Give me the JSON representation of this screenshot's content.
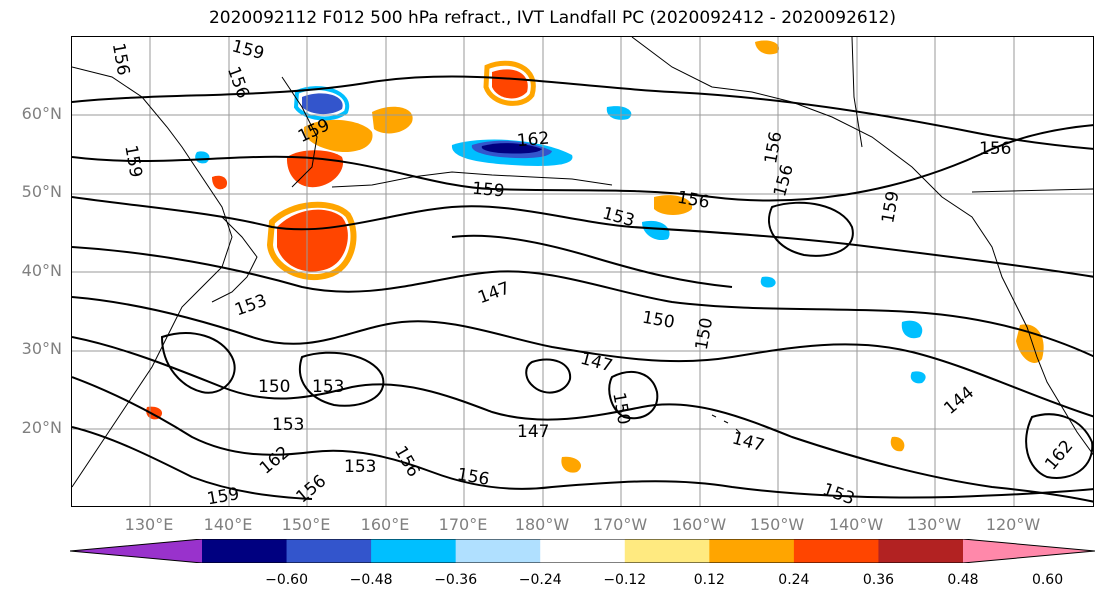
{
  "title": "2020092112 F012 500 hPa refract., IVT Landfall PC (2020092412 - 2020092612)",
  "lat_labels": [
    {
      "text": "60°N",
      "lat": 60
    },
    {
      "text": "50°N",
      "lat": 50
    },
    {
      "text": "40°N",
      "lat": 40
    },
    {
      "text": "30°N",
      "lat": 30
    },
    {
      "text": "20°N",
      "lat": 20
    }
  ],
  "lon_labels": [
    {
      "text": "130°E"
    },
    {
      "text": "140°E"
    },
    {
      "text": "150°E"
    },
    {
      "text": "160°E"
    },
    {
      "text": "170°E"
    },
    {
      "text": "180°W"
    },
    {
      "text": "170°W"
    },
    {
      "text": "160°W"
    },
    {
      "text": "150°W"
    },
    {
      "text": "140°W"
    },
    {
      "text": "130°W"
    },
    {
      "text": "120°W"
    }
  ],
  "contour_labels": [
    {
      "text": "156"
    },
    {
      "text": "159"
    },
    {
      "text": "156"
    },
    {
      "text": "159"
    },
    {
      "text": "159"
    },
    {
      "text": "162"
    },
    {
      "text": "159"
    },
    {
      "text": "156"
    },
    {
      "text": "153"
    },
    {
      "text": "156"
    },
    {
      "text": "156"
    },
    {
      "text": "159"
    },
    {
      "text": "156"
    },
    {
      "text": "153"
    },
    {
      "text": "150"
    },
    {
      "text": "150"
    },
    {
      "text": "147"
    },
    {
      "text": "150"
    },
    {
      "text": "147"
    },
    {
      "text": "147"
    },
    {
      "text": "153"
    },
    {
      "text": "150"
    },
    {
      "text": "153"
    },
    {
      "text": "156"
    },
    {
      "text": "144"
    },
    {
      "text": "147"
    },
    {
      "text": "153"
    },
    {
      "text": "156"
    },
    {
      "text": "159"
    },
    {
      "text": "162"
    },
    {
      "text": "153"
    },
    {
      "text": "156"
    },
    {
      "text": "162"
    }
  ],
  "colorbar": {
    "ticks": [
      {
        "text": "−0.60",
        "value": -0.6
      },
      {
        "text": "−0.48",
        "value": -0.48
      },
      {
        "text": "−0.36",
        "value": -0.36
      },
      {
        "text": "−0.24",
        "value": -0.24
      },
      {
        "text": "−0.12",
        "value": -0.12
      },
      {
        "text": "0.12",
        "value": 0.12
      },
      {
        "text": "0.24",
        "value": 0.24
      },
      {
        "text": "0.36",
        "value": 0.36
      },
      {
        "text": "0.48",
        "value": 0.48
      },
      {
        "text": "0.60",
        "value": 0.6
      }
    ],
    "colors": [
      "#9932cc",
      "#000080",
      "#3355cc",
      "#00bfff",
      "#b0e0ff",
      "#ffffff",
      "#ffea80",
      "#ffa500",
      "#ff4500",
      "#b22222",
      "#ff88aa"
    ]
  },
  "colors": {
    "contour": "#000000",
    "grid": "#9a9a9a",
    "coast": "#000000"
  }
}
